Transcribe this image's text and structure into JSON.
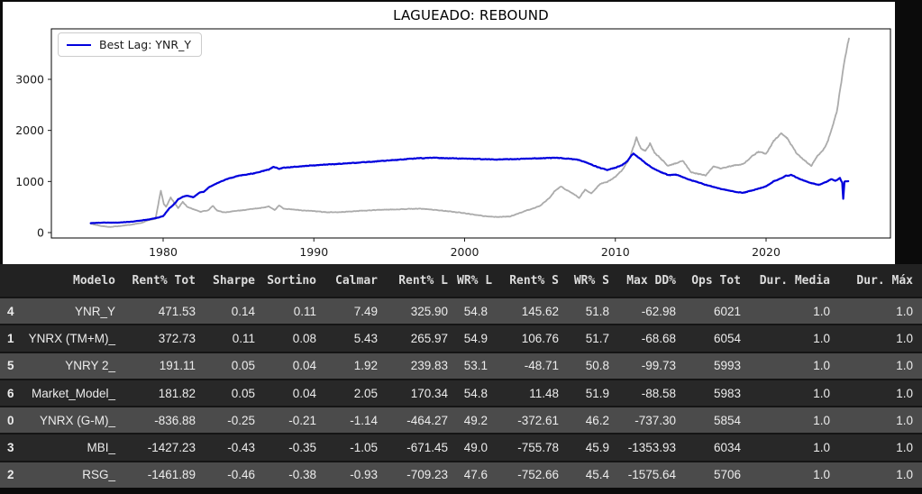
{
  "figure": {
    "title": "LAGUEADO: REBOUND",
    "legend_label": "Best Lag: YNR_Y"
  },
  "colors": {
    "best_lag_line": "#0000dd",
    "benchmark_line": "#ababab",
    "figure_background": "#ffffff",
    "table_header_bg": "#222222",
    "table_row_light": "#4b4b4b",
    "table_row_dark": "#282828",
    "table_text": "#ececec"
  },
  "chart_data": {
    "type": "line",
    "title": "LAGUEADO: REBOUND",
    "xlabel": "",
    "ylabel": "",
    "grid": false,
    "legend_position": "upper left",
    "x_ticks": [
      1980,
      1990,
      2000,
      2010,
      2020
    ],
    "y_ticks": [
      0,
      1000,
      2000,
      3000
    ],
    "x_range": [
      1972.6,
      2028.3
    ],
    "y_range": [
      -105,
      3990
    ],
    "series": [
      {
        "name": "",
        "color": "#ababab",
        "line_width": 1.8,
        "points": [
          [
            1975.2,
            175
          ],
          [
            1975.8,
            130
          ],
          [
            1976.5,
            110
          ],
          [
            1977,
            125
          ],
          [
            1977.8,
            150
          ],
          [
            1978.5,
            185
          ],
          [
            1979,
            240
          ],
          [
            1979.5,
            270
          ],
          [
            1979.85,
            820
          ],
          [
            1980.05,
            560
          ],
          [
            1980.2,
            500
          ],
          [
            1980.5,
            690
          ],
          [
            1980.8,
            560
          ],
          [
            1981,
            480
          ],
          [
            1981.3,
            600
          ],
          [
            1981.6,
            500
          ],
          [
            1982,
            460
          ],
          [
            1982.5,
            405
          ],
          [
            1983,
            440
          ],
          [
            1983.3,
            520
          ],
          [
            1983.6,
            430
          ],
          [
            1984,
            395
          ],
          [
            1984.5,
            410
          ],
          [
            1985,
            430
          ],
          [
            1985.5,
            445
          ],
          [
            1986,
            465
          ],
          [
            1986.5,
            480
          ],
          [
            1987,
            515
          ],
          [
            1987.4,
            440
          ],
          [
            1987.7,
            530
          ],
          [
            1988,
            470
          ],
          [
            1988.5,
            455
          ],
          [
            1989,
            440
          ],
          [
            1990,
            420
          ],
          [
            1991,
            395
          ],
          [
            1992,
            405
          ],
          [
            1993,
            425
          ],
          [
            1994,
            440
          ],
          [
            1995,
            450
          ],
          [
            1996,
            460
          ],
          [
            1997,
            470
          ],
          [
            1998,
            445
          ],
          [
            1999,
            415
          ],
          [
            2000,
            380
          ],
          [
            2001,
            335
          ],
          [
            2002,
            305
          ],
          [
            2003,
            315
          ],
          [
            2004,
            420
          ],
          [
            2005,
            520
          ],
          [
            2005.7,
            700
          ],
          [
            2006,
            820
          ],
          [
            2006.4,
            900
          ],
          [
            2006.8,
            830
          ],
          [
            2007.3,
            740
          ],
          [
            2007.6,
            680
          ],
          [
            2008,
            840
          ],
          [
            2008.4,
            760
          ],
          [
            2009,
            950
          ],
          [
            2009.5,
            1000
          ],
          [
            2010,
            1090
          ],
          [
            2010.5,
            1240
          ],
          [
            2011,
            1490
          ],
          [
            2011.4,
            1860
          ],
          [
            2011.7,
            1640
          ],
          [
            2012,
            1600
          ],
          [
            2012.3,
            1745
          ],
          [
            2012.6,
            1560
          ],
          [
            2013,
            1450
          ],
          [
            2013.5,
            1305
          ],
          [
            2014,
            1355
          ],
          [
            2014.5,
            1400
          ],
          [
            2015,
            1185
          ],
          [
            2015.5,
            1150
          ],
          [
            2016,
            1120
          ],
          [
            2016.5,
            1295
          ],
          [
            2017,
            1250
          ],
          [
            2017.5,
            1290
          ],
          [
            2018,
            1320
          ],
          [
            2018.5,
            1345
          ],
          [
            2019,
            1480
          ],
          [
            2019.5,
            1580
          ],
          [
            2020,
            1540
          ],
          [
            2020.5,
            1790
          ],
          [
            2021,
            1940
          ],
          [
            2021.4,
            1850
          ],
          [
            2022,
            1560
          ],
          [
            2022.5,
            1420
          ],
          [
            2023,
            1310
          ],
          [
            2023.4,
            1500
          ],
          [
            2023.8,
            1620
          ],
          [
            2024.1,
            1800
          ],
          [
            2024.4,
            2080
          ],
          [
            2024.7,
            2380
          ],
          [
            2024.95,
            2860
          ],
          [
            2025.15,
            3250
          ],
          [
            2025.35,
            3600
          ],
          [
            2025.5,
            3800
          ]
        ]
      },
      {
        "name": "Best Lag: YNR_Y",
        "color": "#0000dd",
        "line_width": 2.2,
        "points": [
          [
            1975.2,
            185
          ],
          [
            1976,
            195
          ],
          [
            1977,
            195
          ],
          [
            1978,
            215
          ],
          [
            1979,
            255
          ],
          [
            1979.6,
            290
          ],
          [
            1980,
            320
          ],
          [
            1980.4,
            470
          ],
          [
            1980.8,
            580
          ],
          [
            1981,
            650
          ],
          [
            1981.3,
            700
          ],
          [
            1981.6,
            720
          ],
          [
            1982,
            690
          ],
          [
            1982.4,
            780
          ],
          [
            1982.7,
            800
          ],
          [
            1983,
            880
          ],
          [
            1983.5,
            955
          ],
          [
            1984,
            1020
          ],
          [
            1984.5,
            1070
          ],
          [
            1985,
            1110
          ],
          [
            1985.5,
            1135
          ],
          [
            1986,
            1160
          ],
          [
            1986.5,
            1195
          ],
          [
            1987,
            1235
          ],
          [
            1987.3,
            1285
          ],
          [
            1987.7,
            1250
          ],
          [
            1988,
            1270
          ],
          [
            1989,
            1295
          ],
          [
            1990,
            1315
          ],
          [
            1991,
            1335
          ],
          [
            1992,
            1350
          ],
          [
            1993,
            1370
          ],
          [
            1994,
            1390
          ],
          [
            1995,
            1415
          ],
          [
            1996,
            1435
          ],
          [
            1997,
            1455
          ],
          [
            1998,
            1465
          ],
          [
            1999,
            1455
          ],
          [
            2000,
            1445
          ],
          [
            2001,
            1440
          ],
          [
            2002,
            1430
          ],
          [
            2003,
            1435
          ],
          [
            2004,
            1445
          ],
          [
            2005,
            1455
          ],
          [
            2006,
            1465
          ],
          [
            2007,
            1445
          ],
          [
            2007.5,
            1425
          ],
          [
            2008,
            1380
          ],
          [
            2008.5,
            1320
          ],
          [
            2009,
            1265
          ],
          [
            2009.5,
            1225
          ],
          [
            2010,
            1270
          ],
          [
            2010.5,
            1330
          ],
          [
            2010.8,
            1400
          ],
          [
            2011,
            1490
          ],
          [
            2011.2,
            1545
          ],
          [
            2011.5,
            1480
          ],
          [
            2012,
            1360
          ],
          [
            2012.5,
            1255
          ],
          [
            2013,
            1185
          ],
          [
            2013.5,
            1125
          ],
          [
            2014,
            1135
          ],
          [
            2014.5,
            1085
          ],
          [
            2015,
            1025
          ],
          [
            2015.5,
            985
          ],
          [
            2016,
            935
          ],
          [
            2016.5,
            895
          ],
          [
            2017,
            855
          ],
          [
            2017.5,
            825
          ],
          [
            2018,
            795
          ],
          [
            2018.5,
            780
          ],
          [
            2019,
            820
          ],
          [
            2019.5,
            860
          ],
          [
            2020,
            905
          ],
          [
            2020.5,
            1005
          ],
          [
            2021,
            1060
          ],
          [
            2021.3,
            1110
          ],
          [
            2021.7,
            1130
          ],
          [
            2022,
            1080
          ],
          [
            2022.5,
            1015
          ],
          [
            2023,
            970
          ],
          [
            2023.5,
            935
          ],
          [
            2024,
            990
          ],
          [
            2024.3,
            1045
          ],
          [
            2024.6,
            1015
          ],
          [
            2024.9,
            1065
          ],
          [
            2025.05,
            980
          ],
          [
            2025.12,
            660
          ],
          [
            2025.2,
            1000
          ],
          [
            2025.45,
            1005
          ]
        ]
      }
    ]
  },
  "table": {
    "columns": [
      "",
      "Modelo",
      "Rent% Tot",
      "Sharpe",
      "Sortino",
      "Calmar",
      "Rent% L",
      "WR% L",
      "Rent% S",
      "WR% S",
      "Max DD%",
      "Ops Tot",
      "Dur. Media",
      "Dur. Máx"
    ],
    "column_keys": [
      "idx",
      "modelo",
      "rent_tot",
      "sharpe",
      "sortino",
      "calmar",
      "rent_l",
      "wr_l",
      "rent_s",
      "wr_s",
      "max_dd",
      "ops_tot",
      "dur_media",
      "dur_max"
    ],
    "rows": [
      [
        "4",
        "YNR_Y",
        "471.53",
        "0.14",
        "0.11",
        "7.49",
        "325.90",
        "54.8",
        "145.62",
        "51.8",
        "-62.98",
        "6021",
        "1.0",
        "1.0"
      ],
      [
        "1",
        "YNRX (TM+M)_",
        "372.73",
        "0.11",
        "0.08",
        "5.43",
        "265.97",
        "54.9",
        "106.76",
        "51.7",
        "-68.68",
        "6054",
        "1.0",
        "1.0"
      ],
      [
        "5",
        "YNRY 2_",
        "191.11",
        "0.05",
        "0.04",
        "1.92",
        "239.83",
        "53.1",
        "-48.71",
        "50.8",
        "-99.73",
        "5993",
        "1.0",
        "1.0"
      ],
      [
        "6",
        "Market_Model_",
        "181.82",
        "0.05",
        "0.04",
        "2.05",
        "170.34",
        "54.8",
        "11.48",
        "51.9",
        "-88.58",
        "5983",
        "1.0",
        "1.0"
      ],
      [
        "0",
        "YNRX (G-M)_",
        "-836.88",
        "-0.25",
        "-0.21",
        "-1.14",
        "-464.27",
        "49.2",
        "-372.61",
        "46.2",
        "-737.30",
        "5854",
        "1.0",
        "1.0"
      ],
      [
        "3",
        "MBI_",
        "-1427.23",
        "-0.43",
        "-0.35",
        "-1.05",
        "-671.45",
        "49.0",
        "-755.78",
        "45.9",
        "-1353.93",
        "6034",
        "1.0",
        "1.0"
      ],
      [
        "2",
        "RSG_",
        "-1461.89",
        "-0.46",
        "-0.38",
        "-0.93",
        "-709.23",
        "47.6",
        "-752.66",
        "45.4",
        "-1575.64",
        "5706",
        "1.0",
        "1.0"
      ]
    ]
  }
}
